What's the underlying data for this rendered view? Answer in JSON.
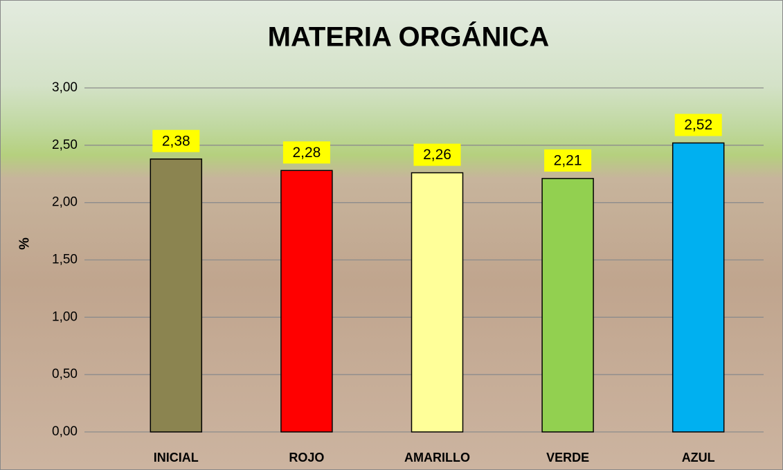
{
  "chart_data": {
    "type": "bar",
    "title": "MATERIA ORGÁNICA",
    "y_label": "%",
    "categories": [
      "INICIAL",
      "ROJO",
      "AMARILLO",
      "VERDE",
      "AZUL"
    ],
    "values": [
      2.38,
      2.28,
      2.26,
      2.21,
      2.52
    ],
    "value_labels": [
      "2,38",
      "2,28",
      "2,26",
      "2,21",
      "2,52"
    ],
    "colors": [
      "#8b8450",
      "#ff0000",
      "#ffff99",
      "#92d050",
      "#00b0f0"
    ],
    "ylim": [
      0,
      3
    ],
    "yticks": [
      {
        "value": 0,
        "label": "0,00"
      },
      {
        "value": 0.5,
        "label": "0,50"
      },
      {
        "value": 1,
        "label": "1,00"
      },
      {
        "value": 1.5,
        "label": "1,50"
      },
      {
        "value": 2,
        "label": "2,00"
      },
      {
        "value": 2.5,
        "label": "2,50"
      },
      {
        "value": 3,
        "label": "3,00"
      }
    ],
    "grid": true
  }
}
